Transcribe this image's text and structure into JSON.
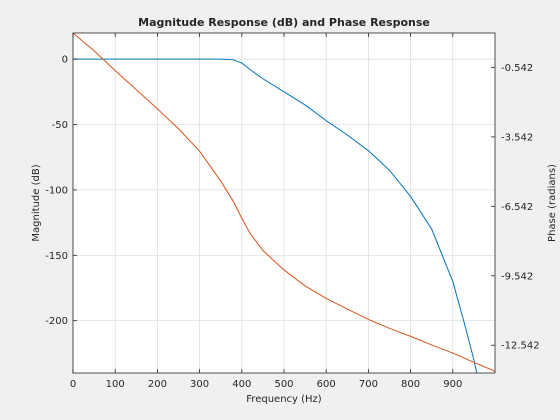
{
  "chart_data": {
    "type": "line",
    "title": "Magnitude Response (dB) and Phase Response",
    "xlabel": "Frequency (Hz)",
    "ylabel_left": "Magnitude (dB)",
    "ylabel_right": "Phase (radians)",
    "xlim": [
      0,
      1000
    ],
    "ylim_left": [
      -240,
      20
    ],
    "ylim_right": [
      -13.742,
      0.946
    ],
    "x_ticks": [
      0,
      100,
      200,
      300,
      400,
      500,
      600,
      700,
      800,
      900
    ],
    "x_tick_labels": [
      "0",
      "100",
      "200",
      "300",
      "400",
      "500",
      "600",
      "700",
      "800",
      "900"
    ],
    "y_left_ticks": [
      0,
      -50,
      -100,
      -150,
      -200
    ],
    "y_left_tick_labels": [
      "0",
      "-50",
      "-100",
      "-150",
      "-200"
    ],
    "y_right_ticks": [
      -0.542,
      -3.542,
      -6.542,
      -9.542,
      -12.542
    ],
    "y_right_tick_labels": [
      "-0.542",
      "-3.542",
      "-6.542",
      "-9.542",
      "-12.542"
    ],
    "grid": true,
    "series": [
      {
        "axis": "left",
        "color": "#0072bd",
        "x": [
          0,
          100,
          200,
          300,
          350,
          380,
          400,
          420,
          450,
          500,
          550,
          600,
          650,
          700,
          750,
          800,
          850,
          900,
          930,
          950,
          970
        ],
        "values": [
          0,
          0,
          0,
          0,
          0,
          -0.5,
          -3,
          -8,
          -15,
          -25,
          -35,
          -47,
          -58,
          -70,
          -85,
          -105,
          -130,
          -170,
          -205,
          -230,
          -260
        ]
      },
      {
        "axis": "right",
        "color": "#d95319",
        "x": [
          0,
          50,
          100,
          150,
          200,
          250,
          300,
          350,
          380,
          400,
          420,
          450,
          500,
          550,
          600,
          650,
          700,
          750,
          800,
          850,
          900,
          950,
          1000
        ],
        "values": [
          0.946,
          0.18,
          -0.68,
          -1.5,
          -2.33,
          -3.19,
          -4.16,
          -5.45,
          -6.33,
          -7.05,
          -7.72,
          -8.45,
          -9.29,
          -9.98,
          -10.52,
          -10.98,
          -11.43,
          -11.81,
          -12.16,
          -12.53,
          -12.88,
          -13.28,
          -13.67
        ]
      }
    ]
  }
}
